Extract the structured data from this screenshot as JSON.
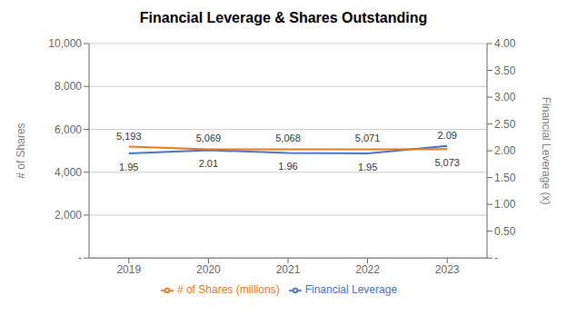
{
  "chart_data": {
    "type": "line",
    "title": "Financial Leverage & Shares Outstanding",
    "x": [
      2019,
      2020,
      2021,
      2022,
      2023
    ],
    "xlim": [
      2018.5,
      2023.5
    ],
    "xticks": [
      2019,
      2020,
      2021,
      2022,
      2023
    ],
    "ylabel": "# of Shares",
    "y2label": "Financial Leverage (x)",
    "ylim": [
      0,
      10000
    ],
    "yticks": [
      {
        "value": 0,
        "label": "-"
      },
      {
        "value": 2000,
        "label": "2,000"
      },
      {
        "value": 4000,
        "label": "4,000"
      },
      {
        "value": 6000,
        "label": "6,000"
      },
      {
        "value": 8000,
        "label": "8,000"
      },
      {
        "value": 10000,
        "label": "10,000"
      }
    ],
    "y2lim": [
      0,
      4.0
    ],
    "y2ticks": [
      {
        "value": 0,
        "label": "-"
      },
      {
        "value": 0.5,
        "label": "0.50"
      },
      {
        "value": 1.0,
        "label": "1.00"
      },
      {
        "value": 1.5,
        "label": "1.50"
      },
      {
        "value": 2.0,
        "label": "2.00"
      },
      {
        "value": 2.5,
        "label": "2.50"
      },
      {
        "value": 3.0,
        "label": "3.00"
      },
      {
        "value": 3.5,
        "label": "3.50"
      },
      {
        "value": 4.0,
        "label": "4.00"
      }
    ],
    "grid": true,
    "legend": "bottom",
    "data_labels": true,
    "series": [
      {
        "name": "Financial Leverage",
        "color": "#4472C4",
        "axis": "y2",
        "values": [
          1.95,
          2.01,
          1.96,
          1.95,
          2.09
        ],
        "value_labels": [
          "1.95",
          "2.01",
          "1.96",
          "1.95",
          "2.09"
        ]
      },
      {
        "name": "# of Shares (millions)",
        "color": "#E87722",
        "values": [
          5193,
          5069,
          5068,
          5071,
          5073
        ],
        "value_labels": [
          "5,193",
          "5,069",
          "5,068",
          "5,071",
          "5,073"
        ]
      }
    ]
  }
}
